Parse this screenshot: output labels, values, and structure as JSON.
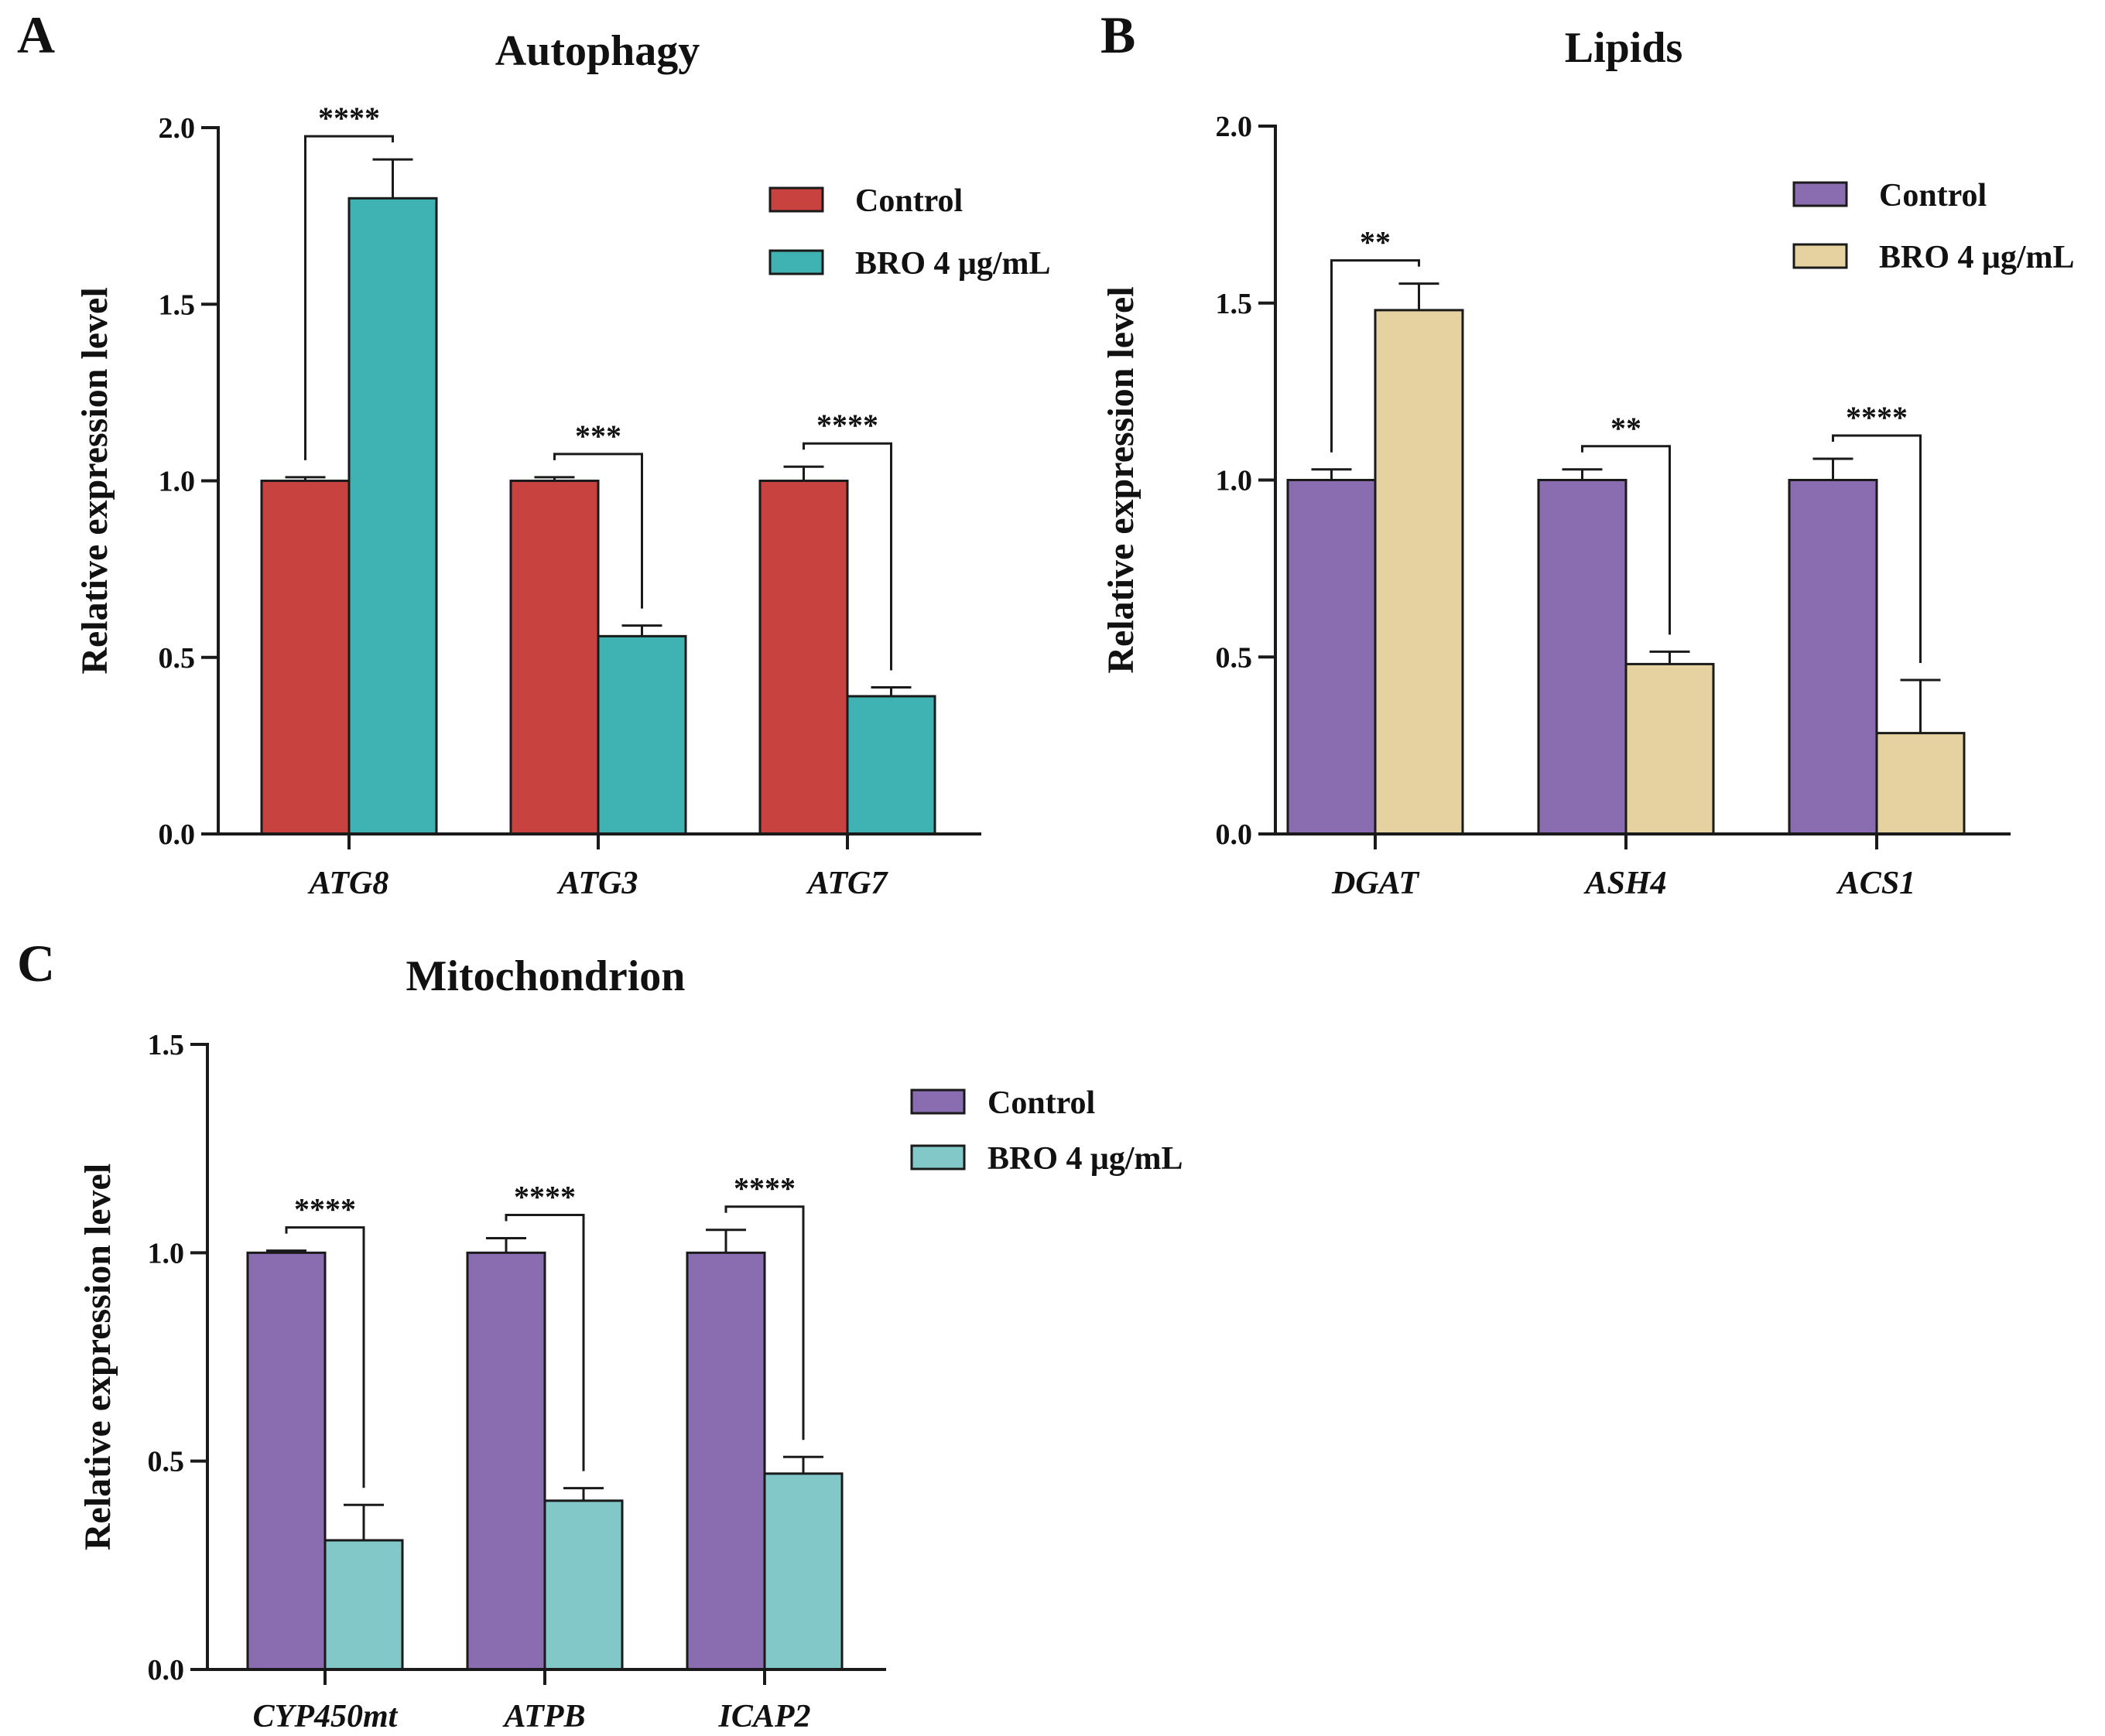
{
  "chart_data": [
    {
      "type": "bar",
      "panel": "A",
      "title": "Autophagy",
      "xlabel": "",
      "ylabel": "Relative expression level",
      "ylim": [
        0,
        2.0
      ],
      "yticks": [
        0.0,
        0.5,
        1.0,
        1.5,
        2.0
      ],
      "ytick_labels": [
        "0.0",
        "0.5",
        "1.0",
        "1.5",
        "2.0"
      ],
      "categories": [
        "ATG8",
        "ATG3",
        "ATG7"
      ],
      "legend_position": "top-right",
      "series": [
        {
          "name": "Control",
          "color": "#c8423f",
          "values": [
            1.0,
            1.0,
            1.0
          ],
          "errors": [
            0.01,
            0.01,
            0.04
          ]
        },
        {
          "name": "BRO 4 μg/mL",
          "color": "#3fb3b3",
          "values": [
            1.8,
            0.56,
            0.39
          ],
          "errors": [
            0.11,
            0.03,
            0.025
          ]
        }
      ],
      "significance": [
        "****",
        "***",
        "****"
      ]
    },
    {
      "type": "bar",
      "panel": "B",
      "title": "Lipids",
      "xlabel": "",
      "ylabel": "Relative expression level",
      "ylim": [
        0,
        2.0
      ],
      "yticks": [
        0.0,
        0.5,
        1.0,
        1.5,
        2.0
      ],
      "ytick_labels": [
        "0.0",
        "0.5",
        "1.0",
        "1.5",
        "2.0"
      ],
      "categories": [
        "DGAT",
        "ASH4",
        "ACS1"
      ],
      "legend_position": "top-right",
      "series": [
        {
          "name": "Control",
          "color": "#8a6cb0",
          "values": [
            1.0,
            1.0,
            1.0
          ],
          "errors": [
            0.03,
            0.03,
            0.06
          ]
        },
        {
          "name": "BRO 4 μg/mL",
          "color": "#e6d1a0",
          "values": [
            1.48,
            0.48,
            0.285
          ],
          "errors": [
            0.075,
            0.035,
            0.15
          ]
        }
      ],
      "significance": [
        "**",
        "**",
        "****"
      ]
    },
    {
      "type": "bar",
      "panel": "C",
      "title": "Mitochondrion",
      "xlabel": "",
      "ylabel": "Relative expression level",
      "ylim": [
        0,
        1.5
      ],
      "yticks": [
        0.0,
        0.5,
        1.0,
        1.5
      ],
      "ytick_labels": [
        "0.0",
        "0.5",
        "1.0",
        "1.5"
      ],
      "categories": [
        "CYP450mt",
        "ATPB",
        "ICAP2"
      ],
      "legend_position": "top-right",
      "series": [
        {
          "name": "Control",
          "color": "#8a6cb0",
          "values": [
            1.0,
            1.0,
            1.0
          ],
          "errors": [
            0.005,
            0.035,
            0.055
          ]
        },
        {
          "name": "BRO 4 μg/mL",
          "color": "#82c8c8",
          "values": [
            0.31,
            0.405,
            0.47
          ],
          "errors": [
            0.085,
            0.03,
            0.04
          ]
        }
      ],
      "significance": [
        "****",
        "****",
        "****"
      ]
    }
  ]
}
